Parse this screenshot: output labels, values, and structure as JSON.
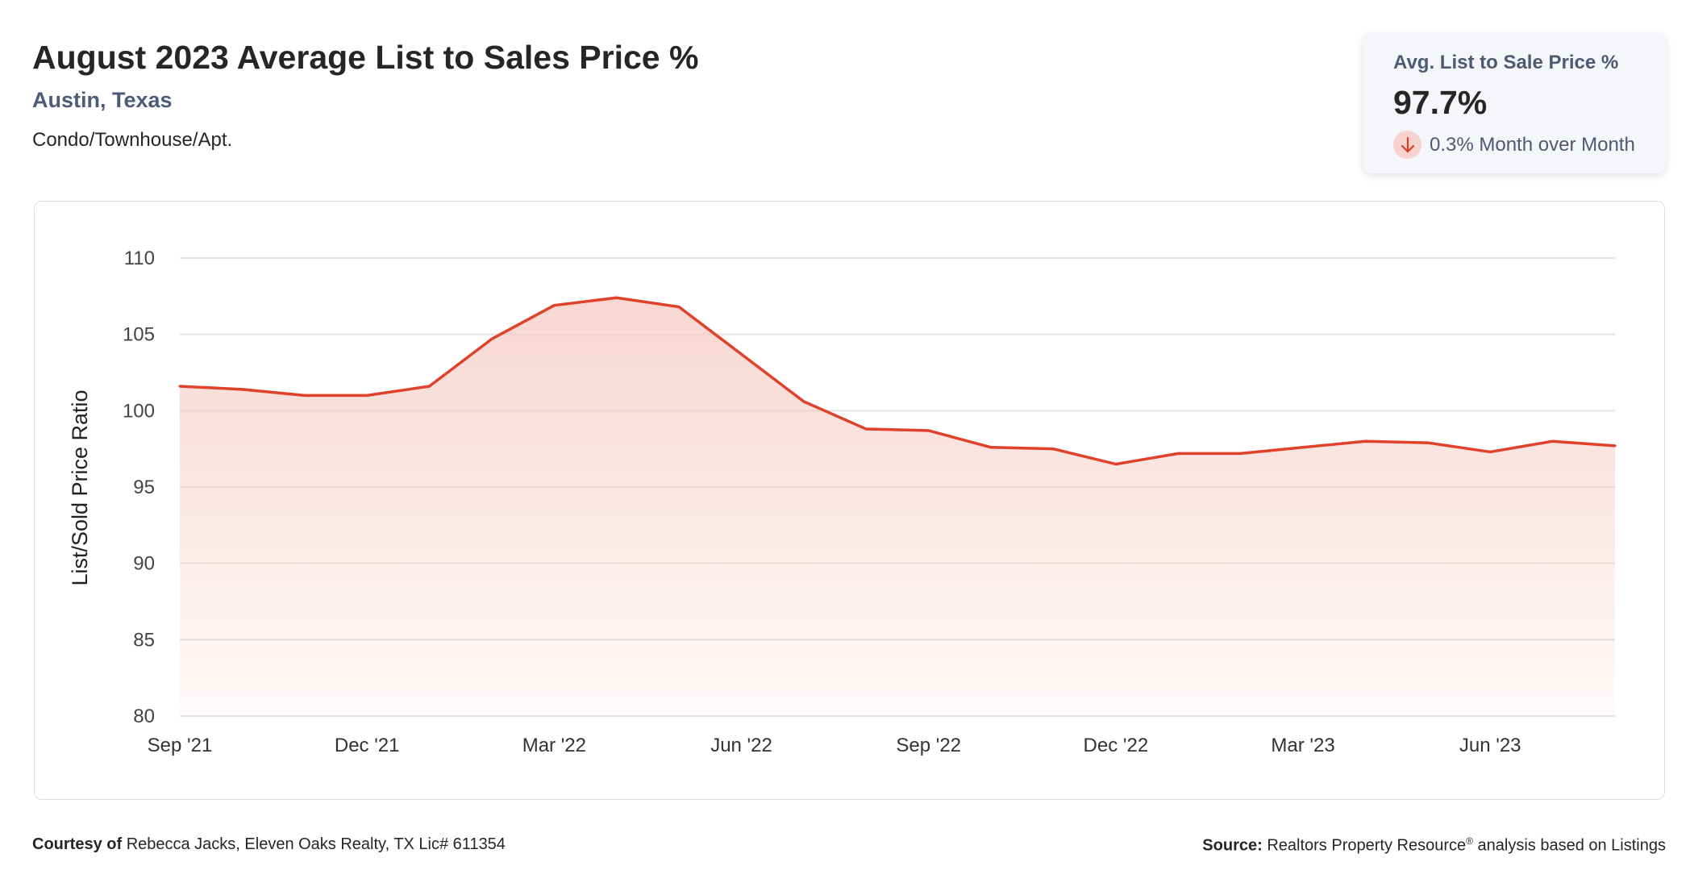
{
  "header": {
    "title": "August 2023 Average List to Sales Price %",
    "location": "Austin, Texas",
    "property_type": "Condo/Townhouse/Apt."
  },
  "summary_card": {
    "label": "Avg. List to Sale Price %",
    "value": "97.7%",
    "change_text": "0.3% Month over Month",
    "direction": "down",
    "icon": "arrow-down-icon"
  },
  "chart_data": {
    "type": "area",
    "ylabel": "List/Sold Price Ratio",
    "xlabel": "",
    "ylim": [
      80,
      110
    ],
    "yticks": [
      "80",
      "85",
      "90",
      "95",
      "100",
      "105",
      "110"
    ],
    "grid": true,
    "x": [
      "Sep '21",
      "Oct '21",
      "Nov '21",
      "Dec '21",
      "Jan '22",
      "Feb '22",
      "Mar '22",
      "Apr '22",
      "May '22",
      "Jun '22",
      "Jul '22",
      "Aug '22",
      "Sep '22",
      "Oct '22",
      "Nov '22",
      "Dec '22",
      "Jan '23",
      "Feb '23",
      "Mar '23",
      "Apr '23",
      "May '23",
      "Jun '23",
      "Jul '23",
      "Aug '23"
    ],
    "xtick_labels": [
      "Sep '21",
      "Dec '21",
      "Mar '22",
      "Jun '22",
      "Sep '22",
      "Dec '22",
      "Mar '23",
      "Jun '23"
    ],
    "series": [
      {
        "values": [
          101.6,
          101.4,
          101.0,
          101.0,
          101.6,
          104.7,
          106.9,
          107.4,
          106.8,
          103.7,
          100.6,
          98.8,
          98.7,
          97.6,
          97.5,
          96.5,
          97.2,
          97.2,
          97.6,
          98.0,
          97.9,
          97.3,
          98.0,
          97.7
        ]
      }
    ],
    "line_color": "#e0412b",
    "fill_color": "#f5c9c1"
  },
  "footer": {
    "courtesy_label": "Courtesy of",
    "courtesy_text": "Rebecca Jacks, Eleven Oaks Realty, TX Lic# 611354",
    "source_label": "Source:",
    "source_text": "Realtors Property Resource",
    "source_mark": "®",
    "source_suffix": "analysis based on Listings"
  }
}
